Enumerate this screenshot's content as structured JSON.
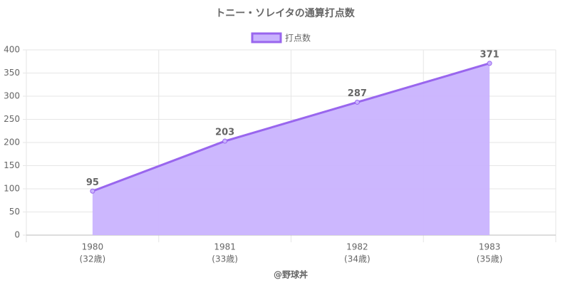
{
  "chart_data": {
    "type": "line",
    "title": "トニー・ソレイタの通算打点数",
    "categories": [
      "1980",
      "1981",
      "1982",
      "1983"
    ],
    "category_sublabels": [
      "(32歳)",
      "(33歳)",
      "(34歳)",
      "(35歳)"
    ],
    "x_axis_title": "@野球丼",
    "series": [
      {
        "name": "打点数",
        "color": "#9966ee",
        "fill": "#c9b3fe",
        "values": [
          95,
          203,
          287,
          371
        ]
      }
    ],
    "ylim": [
      0,
      400
    ],
    "yticks": [
      0,
      50,
      100,
      150,
      200,
      250,
      300,
      350,
      400
    ],
    "grid": true,
    "legend": "top"
  }
}
